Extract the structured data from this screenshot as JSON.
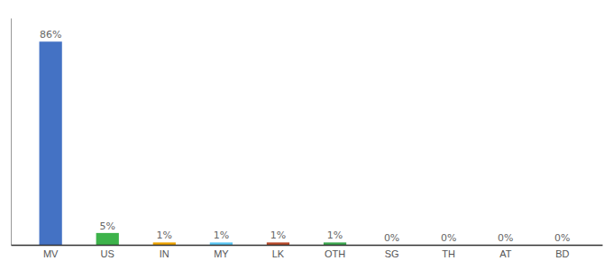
{
  "chart_data": {
    "type": "bar",
    "categories": [
      "MV",
      "US",
      "IN",
      "MY",
      "LK",
      "OTH",
      "SG",
      "TH",
      "AT",
      "BD"
    ],
    "values": [
      86,
      5,
      1,
      1,
      1,
      1,
      0,
      0,
      0,
      0
    ],
    "value_labels": [
      "86%",
      "5%",
      "1%",
      "1%",
      "1%",
      "1%",
      "0%",
      "0%",
      "0%",
      "0%"
    ],
    "colors": [
      "#4472c4",
      "#3db34a",
      "#f0a500",
      "#5bc8f5",
      "#b94a2a",
      "#3daa50",
      "#4472c4",
      "#4472c4",
      "#4472c4",
      "#4472c4"
    ],
    "ylim": [
      0,
      96
    ],
    "data_labels": true,
    "tick_labels": "x",
    "grid": false
  }
}
